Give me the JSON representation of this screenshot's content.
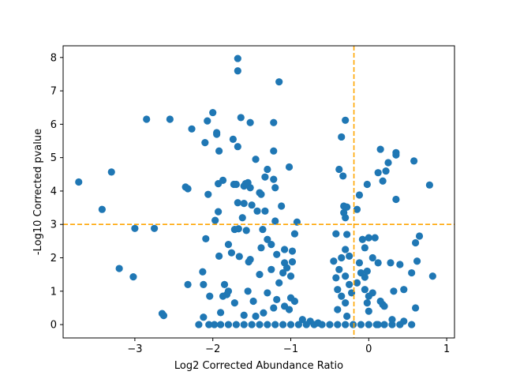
{
  "chart_data": {
    "type": "scatter",
    "xlabel": "Log2 Corrected Abundance Ratio",
    "ylabel": "-Log10 Corrected pvalue",
    "xlim": [
      -3.92,
      1.1
    ],
    "ylim": [
      -0.4,
      8.35
    ],
    "xticks": [
      -3,
      -2,
      -1,
      0,
      1
    ],
    "yticks": [
      0,
      1,
      2,
      3,
      4,
      5,
      6,
      7,
      8
    ],
    "grid": false,
    "point_color": "#1f77b4",
    "threshold_color": "#ffa500",
    "thresholds": {
      "x": -0.19,
      "y": 3.0
    },
    "points": [
      [
        -3.72,
        4.27
      ],
      [
        -3.42,
        3.45
      ],
      [
        -3.3,
        4.57
      ],
      [
        -3.2,
        1.68
      ],
      [
        -3.02,
        1.43
      ],
      [
        -3.0,
        2.88
      ],
      [
        -2.85,
        6.15
      ],
      [
        -2.75,
        2.88
      ],
      [
        -2.65,
        0.33
      ],
      [
        -2.63,
        0.27
      ],
      [
        -2.55,
        6.15
      ],
      [
        -2.35,
        4.12
      ],
      [
        -2.32,
        4.07
      ],
      [
        -2.32,
        1.2
      ],
      [
        -2.27,
        5.86
      ],
      [
        -2.18,
        0.0
      ],
      [
        -2.13,
        1.58
      ],
      [
        -2.12,
        1.2
      ],
      [
        -2.12,
        0.22
      ],
      [
        -2.1,
        5.45
      ],
      [
        -2.09,
        2.57
      ],
      [
        -2.07,
        6.1
      ],
      [
        -2.06,
        3.9
      ],
      [
        -2.04,
        0.85
      ],
      [
        -2.0,
        6.35
      ],
      [
        -1.97,
        3.12
      ],
      [
        -1.95,
        5.75
      ],
      [
        -1.95,
        5.7
      ],
      [
        -1.93,
        3.38
      ],
      [
        -1.93,
        4.22
      ],
      [
        -1.92,
        2.05
      ],
      [
        -1.92,
        5.2
      ],
      [
        -1.87,
        4.32
      ],
      [
        -1.87,
        0.85
      ],
      [
        -1.85,
        1.2
      ],
      [
        -1.82,
        0.9
      ],
      [
        -1.8,
        2.4
      ],
      [
        -1.8,
        1.0
      ],
      [
        -1.76,
        2.15
      ],
      [
        -1.74,
        5.55
      ],
      [
        -1.73,
        4.2
      ],
      [
        -1.72,
        2.85
      ],
      [
        -1.7,
        4.2
      ],
      [
        -1.68,
        7.97
      ],
      [
        -1.68,
        7.6
      ],
      [
        -1.68,
        5.33
      ],
      [
        -1.68,
        3.65
      ],
      [
        -1.67,
        2.87
      ],
      [
        -1.66,
        2.04
      ],
      [
        -1.64,
        6.2
      ],
      [
        -1.6,
        4.15
      ],
      [
        -1.58,
        4.22
      ],
      [
        -1.62,
        3.2
      ],
      [
        -1.6,
        3.63
      ],
      [
        -1.57,
        2.82
      ],
      [
        -1.55,
        4.25
      ],
      [
        -1.52,
        6.05
      ],
      [
        -1.52,
        4.1
      ],
      [
        -1.52,
        1.95
      ],
      [
        -1.54,
        1.88
      ],
      [
        -1.5,
        3.58
      ],
      [
        -1.45,
        4.95
      ],
      [
        -1.43,
        3.4
      ],
      [
        -1.4,
        3.95
      ],
      [
        -1.38,
        3.9
      ],
      [
        -1.38,
        2.3
      ],
      [
        -1.36,
        2.85
      ],
      [
        -1.33,
        4.42
      ],
      [
        -1.33,
        3.4
      ],
      [
        -1.3,
        2.55
      ],
      [
        -1.3,
        4.65
      ],
      [
        -1.25,
        2.4
      ],
      [
        -1.22,
        6.05
      ],
      [
        -1.22,
        5.2
      ],
      [
        -1.22,
        4.35
      ],
      [
        -1.2,
        4.1
      ],
      [
        -1.2,
        3.1
      ],
      [
        -1.18,
        2.1
      ],
      [
        -1.15,
        7.27
      ],
      [
        -1.12,
        3.55
      ],
      [
        -1.08,
        2.25
      ],
      [
        -1.02,
        4.72
      ],
      [
        -0.95,
        2.72
      ],
      [
        -0.92,
        3.07
      ],
      [
        -0.98,
        2.2
      ],
      [
        -1.15,
        1.25
      ],
      [
        -1.25,
        1.65
      ],
      [
        -1.08,
        1.85
      ],
      [
        -0.98,
        1.88
      ],
      [
        -1.0,
        1.45
      ],
      [
        -1.05,
        1.7
      ],
      [
        -1.1,
        1.55
      ],
      [
        -1.4,
        1.5
      ],
      [
        -1.55,
        1.0
      ],
      [
        -1.48,
        0.7
      ],
      [
        -1.72,
        0.65
      ],
      [
        -1.3,
        0.95
      ],
      [
        -1.18,
        0.75
      ],
      [
        -1.0,
        0.8
      ],
      [
        -0.95,
        0.7
      ],
      [
        -1.35,
        0.35
      ],
      [
        -1.6,
        0.28
      ],
      [
        -1.9,
        0.36
      ],
      [
        -1.45,
        0.25
      ],
      [
        -1.22,
        0.5
      ],
      [
        -1.08,
        0.55
      ],
      [
        -1.02,
        0.45
      ],
      [
        -0.85,
        0.15
      ],
      [
        -0.75,
        0.1
      ],
      [
        -0.65,
        0.05
      ],
      [
        -0.6,
        0.0
      ],
      [
        -1.98,
        0.0
      ],
      [
        -1.9,
        0.0
      ],
      [
        -1.8,
        0.0
      ],
      [
        -1.7,
        0.0
      ],
      [
        -1.6,
        0.0
      ],
      [
        -1.5,
        0.0
      ],
      [
        -1.4,
        0.0
      ],
      [
        -1.3,
        0.0
      ],
      [
        -1.2,
        0.0
      ],
      [
        -1.1,
        0.0
      ],
      [
        -1.0,
        0.0
      ],
      [
        -0.9,
        0.0
      ],
      [
        -0.8,
        0.0
      ],
      [
        -0.7,
        0.0
      ],
      [
        -0.5,
        0.0
      ],
      [
        -0.4,
        0.0
      ],
      [
        -0.3,
        0.0
      ],
      [
        -0.2,
        0.0
      ],
      [
        -0.1,
        0.0
      ],
      [
        0.0,
        0.0
      ],
      [
        0.1,
        0.0
      ],
      [
        0.2,
        0.0
      ],
      [
        0.3,
        0.0
      ],
      [
        0.4,
        0.0
      ],
      [
        -2.05,
        0.0
      ],
      [
        -0.42,
        2.72
      ],
      [
        -0.38,
        4.65
      ],
      [
        -0.35,
        5.62
      ],
      [
        -0.32,
        3.55
      ],
      [
        -0.32,
        3.35
      ],
      [
        -0.3,
        3.2
      ],
      [
        -0.3,
        6.12
      ],
      [
        -0.28,
        3.52
      ],
      [
        -0.33,
        4.45
      ],
      [
        -0.28,
        2.7
      ],
      [
        -0.3,
        2.25
      ],
      [
        -0.25,
        2.05
      ],
      [
        -0.35,
        2.0
      ],
      [
        -0.38,
        1.65
      ],
      [
        -0.42,
        1.4
      ],
      [
        -0.45,
        1.9
      ],
      [
        -0.3,
        1.45
      ],
      [
        -0.25,
        1.2
      ],
      [
        -0.35,
        0.85
      ],
      [
        -0.3,
        0.65
      ],
      [
        -0.4,
        0.45
      ],
      [
        -0.28,
        0.25
      ],
      [
        -0.22,
        0.95
      ],
      [
        -0.4,
        1.05
      ],
      [
        -0.15,
        3.45
      ],
      [
        -0.12,
        3.88
      ],
      [
        -0.12,
        1.85
      ],
      [
        -0.1,
        1.55
      ],
      [
        -0.15,
        1.25
      ],
      [
        -0.08,
        2.55
      ],
      [
        -0.05,
        2.3
      ],
      [
        -0.02,
        4.2
      ],
      [
        0.0,
        2.6
      ],
      [
        -0.02,
        1.6
      ],
      [
        -0.05,
        1.42
      ],
      [
        0.05,
        2.0
      ],
      [
        0.08,
        2.6
      ],
      [
        0.12,
        1.85
      ],
      [
        0.12,
        4.55
      ],
      [
        0.15,
        5.25
      ],
      [
        0.18,
        4.3
      ],
      [
        0.22,
        4.6
      ],
      [
        0.25,
        4.85
      ],
      [
        0.28,
        1.85
      ],
      [
        0.32,
        1.0
      ],
      [
        0.35,
        5.15
      ],
      [
        0.35,
        5.08
      ],
      [
        0.35,
        3.75
      ],
      [
        0.4,
        1.8
      ],
      [
        0.45,
        1.05
      ],
      [
        0.55,
        1.55
      ],
      [
        0.58,
        4.9
      ],
      [
        0.6,
        2.45
      ],
      [
        0.62,
        1.9
      ],
      [
        0.65,
        2.65
      ],
      [
        0.78,
        4.18
      ],
      [
        0.82,
        1.45
      ],
      [
        0.6,
        0.5
      ],
      [
        0.55,
        0.0
      ],
      [
        0.15,
        0.7
      ],
      [
        0.0,
        0.85
      ],
      [
        0.05,
        0.95
      ],
      [
        -0.02,
        0.65
      ],
      [
        -0.05,
        1.05
      ],
      [
        0.18,
        0.6
      ],
      [
        0.0,
        0.4
      ],
      [
        0.3,
        0.15
      ],
      [
        0.45,
        0.1
      ],
      [
        0.12,
        0.0
      ],
      [
        0.2,
        0.55
      ]
    ]
  }
}
